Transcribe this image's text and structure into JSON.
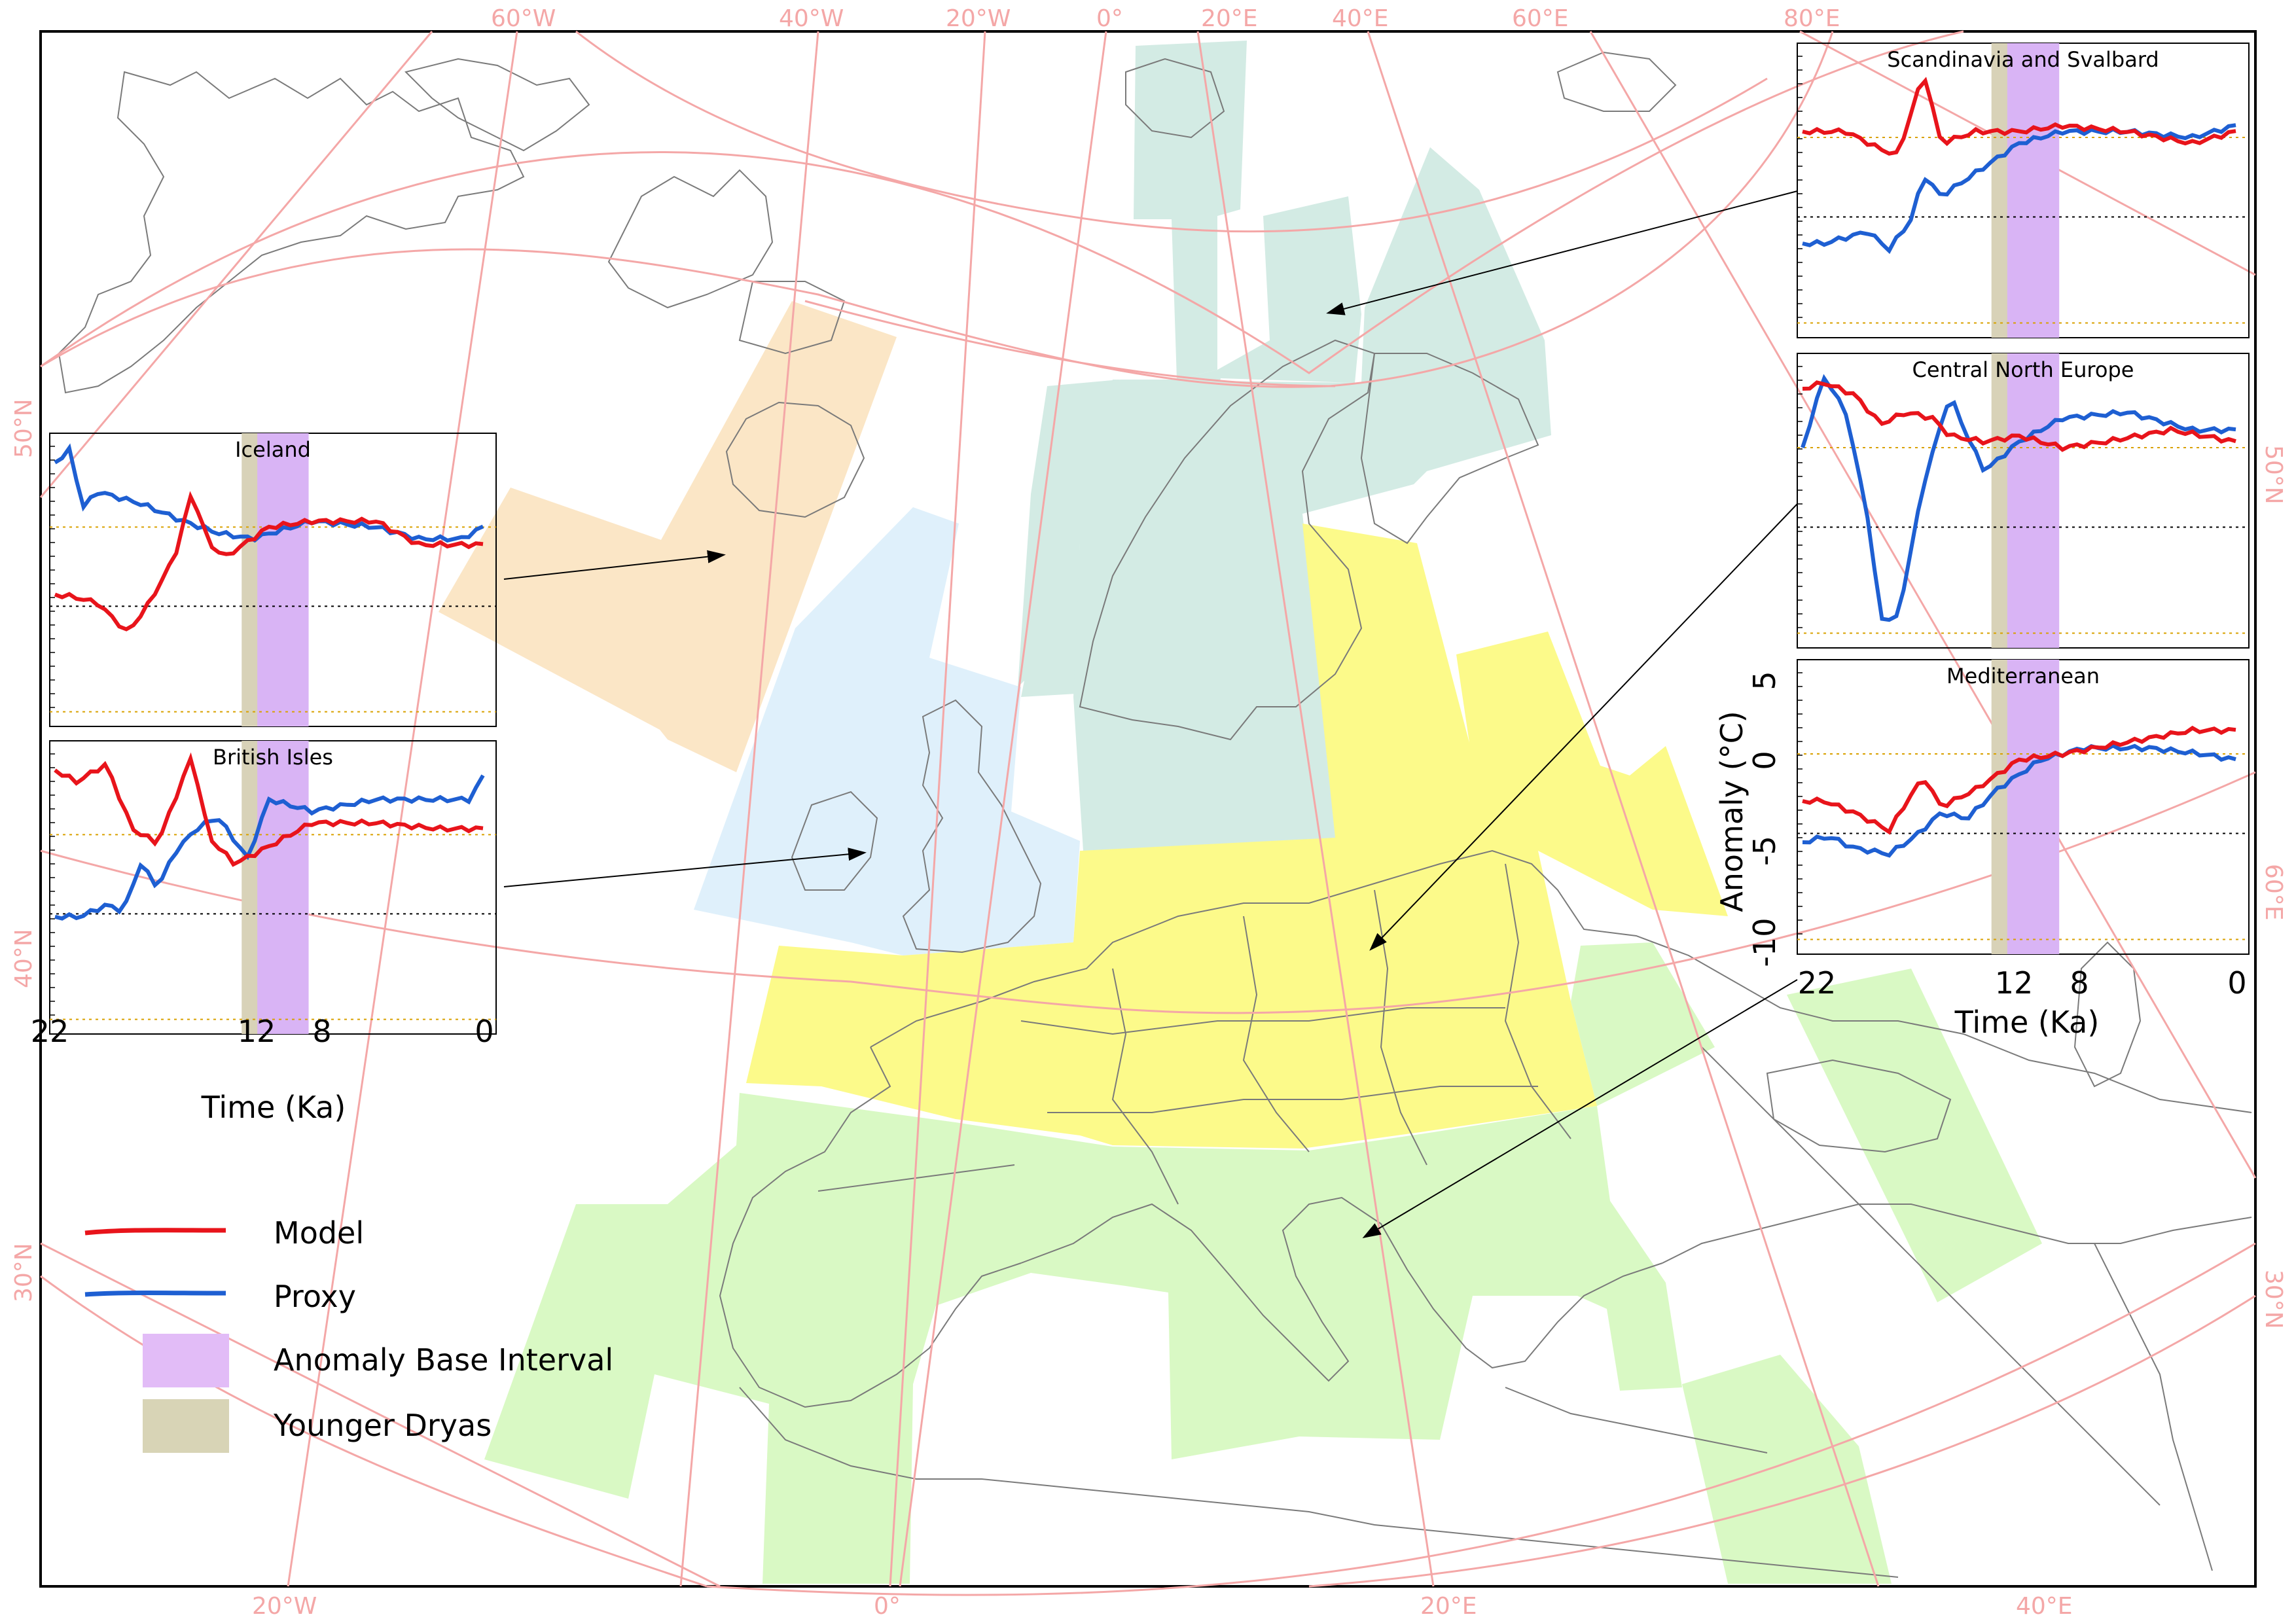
{
  "graticule_labels": {
    "top": [
      "60°W",
      "40°W",
      "20°W",
      "0°",
      "20°E",
      "40°E",
      "60°E",
      "80°E"
    ],
    "left": [
      "50°N",
      "40°N",
      "30°N"
    ],
    "right": [
      "50°N",
      "60°E",
      "30°N"
    ],
    "bottom": [
      "20°W",
      "0°",
      "20°E",
      "40°E"
    ]
  },
  "insets": [
    {
      "id": "iceland",
      "title": "Iceland"
    },
    {
      "id": "british",
      "title": "British Isles"
    },
    {
      "id": "scandinavia",
      "title": "Scandinavia and Svalbard"
    },
    {
      "id": "central",
      "title": "Central North Europe"
    },
    {
      "id": "mediterranean",
      "title": "Mediterranean"
    }
  ],
  "axes": {
    "xlabel": "Time (Ka)",
    "ylabel": "Anomaly (°C)",
    "x_ticks": [
      "22",
      "12",
      "8",
      "0"
    ],
    "y_ticks": [
      "5",
      "0",
      "-5",
      "-10"
    ]
  },
  "legend": [
    {
      "label": "Model",
      "color": "#e8141b",
      "kind": "line"
    },
    {
      "label": "Proxy",
      "color": "#1e5fd2",
      "kind": "line"
    },
    {
      "label": "Anomaly Base Interval",
      "color": "#e2bcf7",
      "kind": "box"
    },
    {
      "label": "Younger Dryas",
      "color": "#d8d4b6",
      "kind": "box"
    }
  ],
  "colors": {
    "graticule": "#f4a7a7",
    "iceland_region": "#fbe6c6",
    "british_region": "#dff0fb",
    "scandinavia_region": "#d3ebe4",
    "central_region": "#fcfa8a",
    "mediterranean_region": "#d9f9c4",
    "model": "#e8141b",
    "proxy": "#1e5fd2",
    "base_interval": "#d9b4f5",
    "younger_dryas": "#d8d2b8"
  }
}
